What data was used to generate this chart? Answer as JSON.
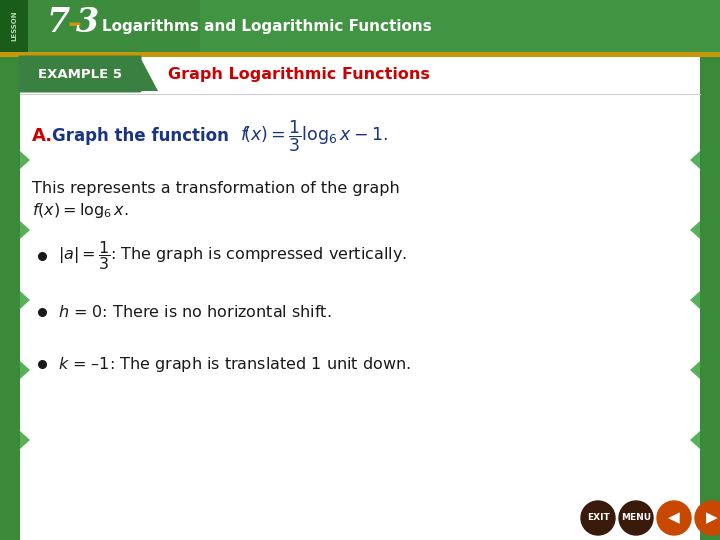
{
  "lesson_title": "Logarithms and Logarithmic Functions",
  "lesson_number": "7–3",
  "example_label": "EXAMPLE 5",
  "example_title": "Graph Logarithmic Functions",
  "bg_color": "#e8e8e8",
  "white_panel_color": "#ffffff",
  "green_dark": "#2e7d2e",
  "green_mid": "#3d8c3d",
  "green_light": "#4da84d",
  "green_border": "#3a8a3a",
  "gold_stripe": "#c8960a",
  "red_color": "#cc0000",
  "blue_color": "#1a3580",
  "example_box_green": "#3a8040",
  "lesson_strip_green": "#1a5c1a",
  "body_text_color": "#1a1a1a",
  "nav_dark": "#3a1a0a",
  "nav_orange": "#c84800"
}
